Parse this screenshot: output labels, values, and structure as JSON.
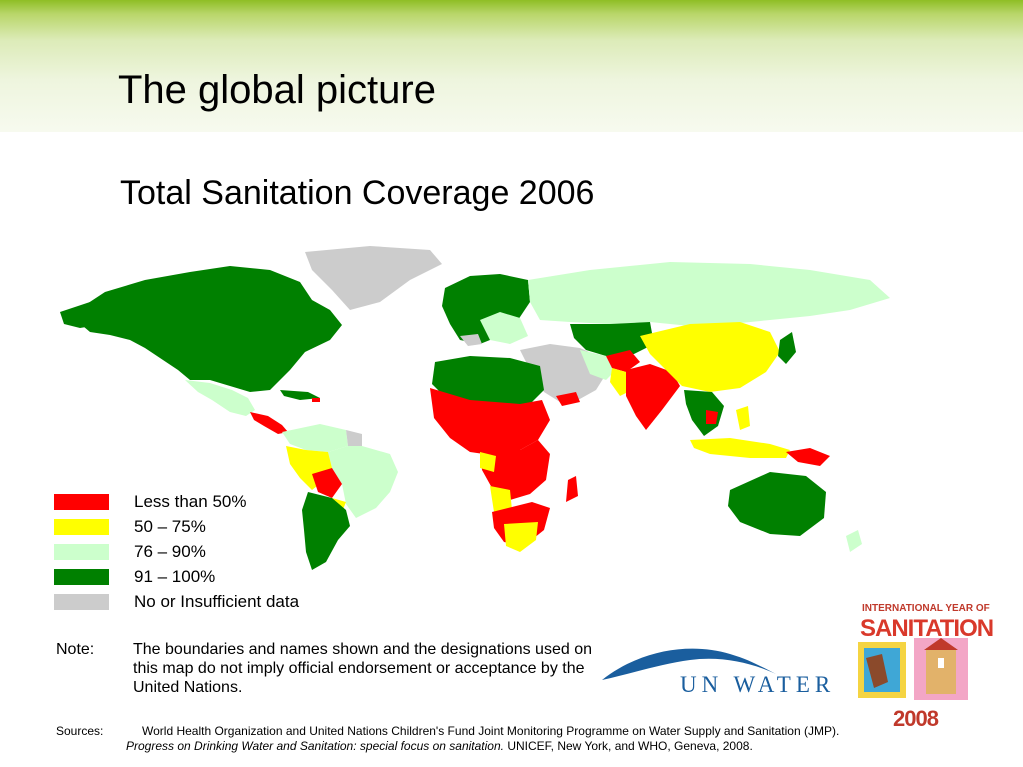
{
  "slide": {
    "title": "The global picture",
    "subtitle": "Total Sanitation Coverage 2006"
  },
  "legend": [
    {
      "label": "Less than 50%",
      "color": "#ff0000"
    },
    {
      "label": "50 – 75%",
      "color": "#ffff00"
    },
    {
      "label": "76 – 90%",
      "color": "#ccffcc"
    },
    {
      "label": "91 – 100%",
      "color": "#008000"
    },
    {
      "label": "No or Insufficient data",
      "color": "#cccccc"
    }
  ],
  "note": {
    "label": "Note:",
    "text": "The boundaries and names shown and the designations used on this map do not imply official endorsement or acceptance by the United Nations."
  },
  "sources": {
    "label": "Sources:",
    "text_plain": "World Health Organization and United Nations Children's Fund Joint Monitoring Programme on Water Supply and Sanitation (JMP). ",
    "text_italic": "Progress on Drinking Water and Sanitation: special focus on sanitation.",
    "text_end": " UNICEF, New York, and WHO, Geneva, 2008."
  },
  "logos": {
    "unwater": "UN WATER",
    "iys_top": "INTERNATIONAL YEAR OF",
    "iys_mid": "SANITATION",
    "iys_year": "2008"
  },
  "colors": {
    "header_green": "#8fbe24",
    "unwater_blue": "#1a5e9e",
    "iys_red": "#c0392b"
  }
}
